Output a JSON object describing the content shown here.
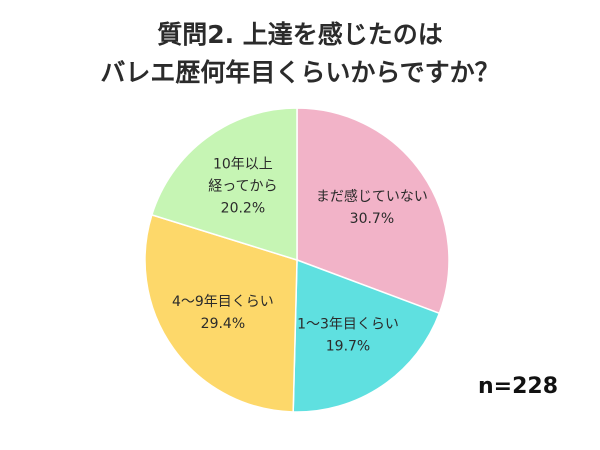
{
  "title_lines": [
    "質問2. 上達を感じたのは",
    "バレエ歴何年目くらいからですか？"
  ],
  "sample_size": "n=228",
  "chart_data": {
    "type": "pie",
    "title": "質問2. 上達を感じたのは バレエ歴何年目くらいからですか？",
    "start": "12 o'clock",
    "direction": "clockwise",
    "slices": [
      {
        "label_lines": [
          "まだ感じていない"
        ],
        "value": 30.7,
        "value_label": "30.7%",
        "color": "#f2b3c8"
      },
      {
        "label_lines": [
          "1～3年目くらい"
        ],
        "value": 19.7,
        "value_label": "19.7%",
        "color": "#5fe0e0"
      },
      {
        "label_lines": [
          "4～9年目くらい"
        ],
        "value": 29.4,
        "value_label": "29.4%",
        "color": "#fdd86a"
      },
      {
        "label_lines": [
          "10年以上",
          "経ってから"
        ],
        "value": 20.2,
        "value_label": "20.2%",
        "color": "#c6f5b4"
      }
    ]
  }
}
